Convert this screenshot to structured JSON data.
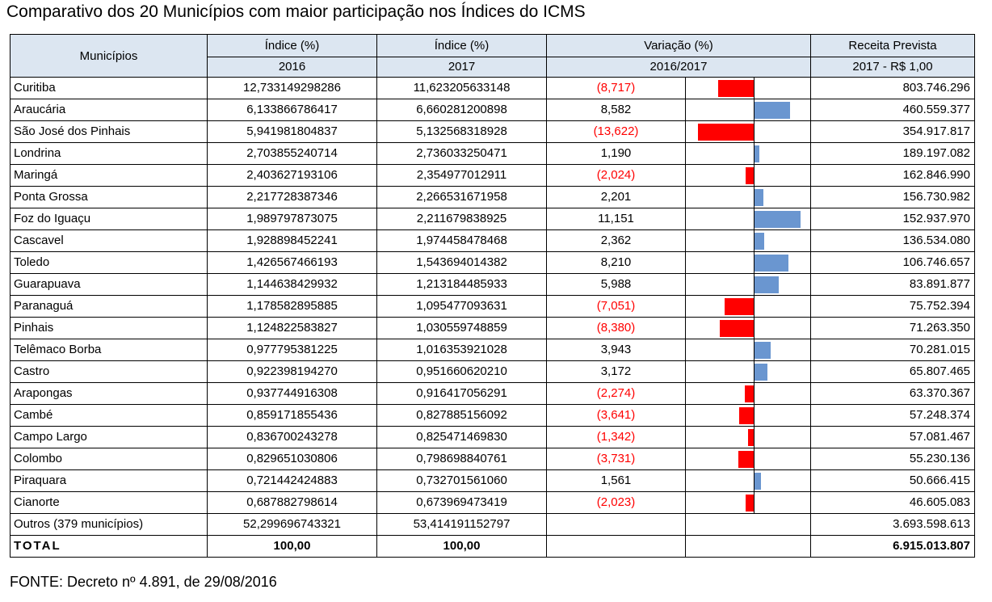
{
  "title": "Comparativo dos 20 Municípios com maior participação nos Índices do ICMS",
  "header": {
    "municipios": "Municípios",
    "indice_label": "Índice (%)",
    "year_2016": "2016",
    "year_2017": "2017",
    "variacao_label": "Variação (%)",
    "variacao_period": "2016/2017",
    "receita_label": "Receita Prevista",
    "receita_period": "2017 - R$ 1,00"
  },
  "rows": [
    {
      "name": "Curitiba",
      "i2016": "12,733149298286",
      "i2017": "11,623205633148",
      "var": "(8,717)",
      "v": -8.717,
      "receita": "803.746.296"
    },
    {
      "name": "Araucária",
      "i2016": "6,133866786417",
      "i2017": "6,660281200898",
      "var": "8,582",
      "v": 8.582,
      "receita": "460.559.377"
    },
    {
      "name": "São José dos Pinhais",
      "i2016": "5,941981804837",
      "i2017": "5,132568318928",
      "var": "(13,622)",
      "v": -13.622,
      "receita": "354.917.817"
    },
    {
      "name": "Londrina",
      "i2016": "2,703855240714",
      "i2017": "2,736033250471",
      "var": "1,190",
      "v": 1.19,
      "receita": "189.197.082"
    },
    {
      "name": "Maringá",
      "i2016": "2,403627193106",
      "i2017": "2,354977012911",
      "var": "(2,024)",
      "v": -2.024,
      "receita": "162.846.990"
    },
    {
      "name": "Ponta Grossa",
      "i2016": "2,217728387346",
      "i2017": "2,266531671958",
      "var": "2,201",
      "v": 2.201,
      "receita": "156.730.982"
    },
    {
      "name": "Foz do Iguaçu",
      "i2016": "1,989797873075",
      "i2017": "2,211679838925",
      "var": "11,151",
      "v": 11.151,
      "receita": "152.937.970"
    },
    {
      "name": "Cascavel",
      "i2016": "1,928898452241",
      "i2017": "1,974458478468",
      "var": "2,362",
      "v": 2.362,
      "receita": "136.534.080"
    },
    {
      "name": "Toledo",
      "i2016": "1,426567466193",
      "i2017": "1,543694014382",
      "var": "8,210",
      "v": 8.21,
      "receita": "106.746.657"
    },
    {
      "name": "Guarapuava",
      "i2016": "1,144638429932",
      "i2017": "1,213184485933",
      "var": "5,988",
      "v": 5.988,
      "receita": "83.891.877"
    },
    {
      "name": "Paranaguá",
      "i2016": "1,178582895885",
      "i2017": "1,095477093631",
      "var": "(7,051)",
      "v": -7.051,
      "receita": "75.752.394"
    },
    {
      "name": "Pinhais",
      "i2016": "1,124822583827",
      "i2017": "1,030559748859",
      "var": "(8,380)",
      "v": -8.38,
      "receita": "71.263.350"
    },
    {
      "name": "Telêmaco Borba",
      "i2016": "0,977795381225",
      "i2017": "1,016353921028",
      "var": "3,943",
      "v": 3.943,
      "receita": "70.281.015"
    },
    {
      "name": "Castro",
      "i2016": "0,922398194270",
      "i2017": "0,951660620210",
      "var": "3,172",
      "v": 3.172,
      "receita": "65.807.465"
    },
    {
      "name": "Arapongas",
      "i2016": "0,937744916308",
      "i2017": "0,916417056291",
      "var": "(2,274)",
      "v": -2.274,
      "receita": "63.370.367"
    },
    {
      "name": "Cambé",
      "i2016": "0,859171855436",
      "i2017": "0,827885156092",
      "var": "(3,641)",
      "v": -3.641,
      "receita": "57.248.374"
    },
    {
      "name": "Campo Largo",
      "i2016": "0,836700243278",
      "i2017": "0,825471469830",
      "var": "(1,342)",
      "v": -1.342,
      "receita": "57.081.467"
    },
    {
      "name": "Colombo",
      "i2016": "0,829651030806",
      "i2017": "0,798698840761",
      "var": "(3,731)",
      "v": -3.731,
      "receita": "55.230.136"
    },
    {
      "name": "Piraquara",
      "i2016": "0,721442424883",
      "i2017": "0,732701561060",
      "var": "1,561",
      "v": 1.561,
      "receita": "50.666.415"
    },
    {
      "name": "Cianorte",
      "i2016": "0,687882798614",
      "i2017": "0,673969473419",
      "var": "(2,023)",
      "v": -2.023,
      "receita": "46.605.083"
    }
  ],
  "outros": {
    "name": "Outros (379 municípios)",
    "i2016": "52,299696743321",
    "i2017": "53,414191152797",
    "receita": "3.693.598.613"
  },
  "total": {
    "name": "TOTAL",
    "i2016": "100,00",
    "i2017": "100,00",
    "receita": "6.915.013.807"
  },
  "footer": "FONTE: Decreto nº 4.891, de 29/08/2016",
  "colors": {
    "positive_bar": "#6a96d0",
    "negative_bar": "#ff0000",
    "negative_text": "#ff0000",
    "header_bg": "#dce6f1"
  }
}
